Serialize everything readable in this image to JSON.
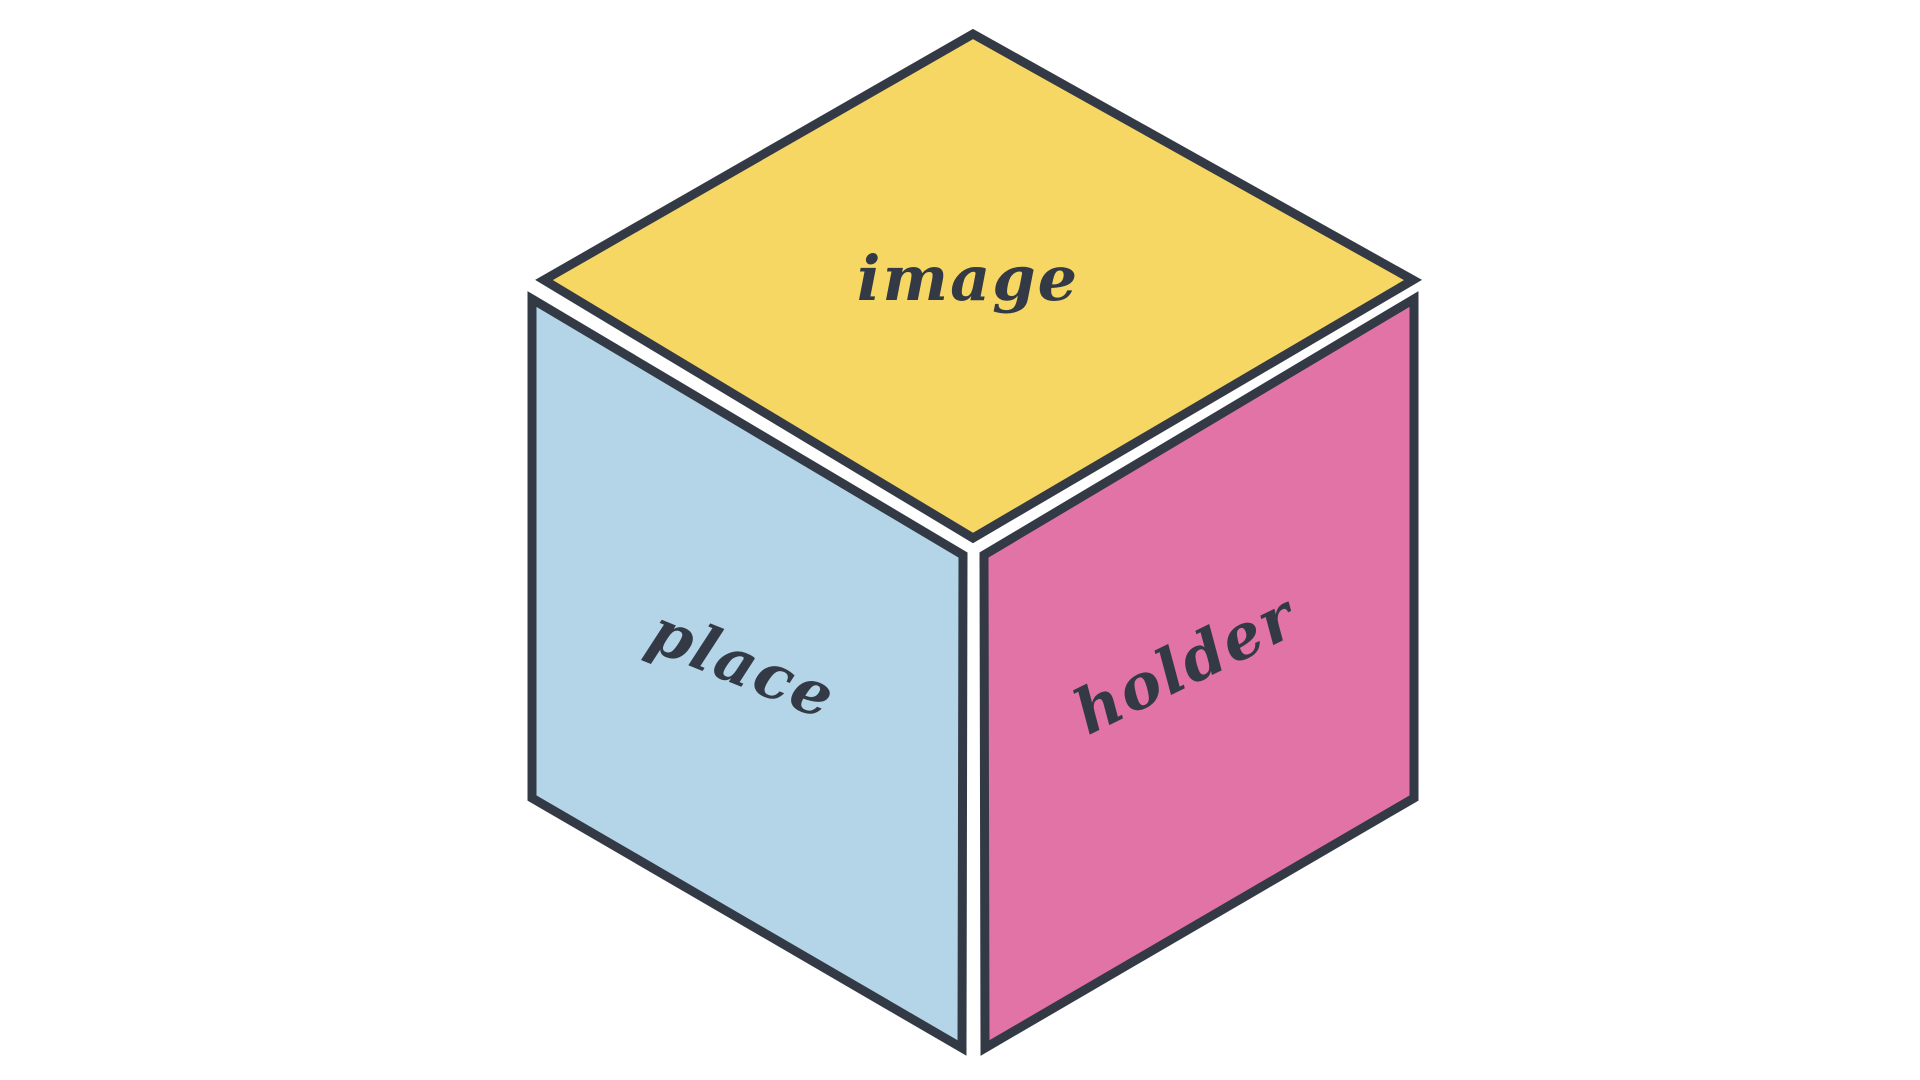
{
  "graphic": {
    "stroke_color": "#333a45",
    "background_color": "#ffffff",
    "faces": {
      "top": {
        "label": "image",
        "color": "#f7d764"
      },
      "left": {
        "label": "place",
        "color": "#b3d5e7"
      },
      "right": {
        "label": "holder",
        "color": "#e273a6"
      }
    }
  }
}
